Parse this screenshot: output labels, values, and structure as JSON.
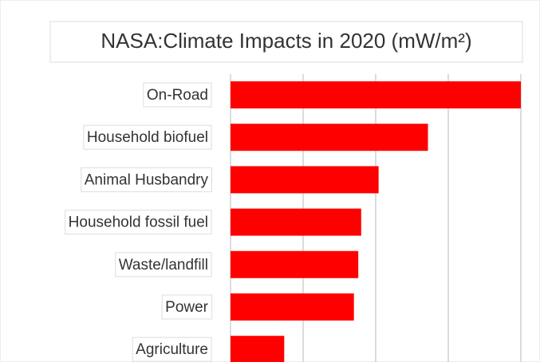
{
  "chart_data": {
    "type": "barh",
    "title": "NASA:Climate Impacts in 2020 (mW/m²)",
    "categories": [
      "On-Road",
      "Household biofuel",
      "Animal Husbandry",
      "Household fossil fuel",
      "Waste/landfill",
      "Power",
      "Agriculture"
    ],
    "values": [
      200,
      136,
      102,
      90,
      88,
      85,
      37
    ],
    "color": "#ff0000",
    "xlim": [
      0,
      200
    ],
    "xticks": [
      0,
      50,
      100,
      150,
      200
    ],
    "grid": true
  }
}
